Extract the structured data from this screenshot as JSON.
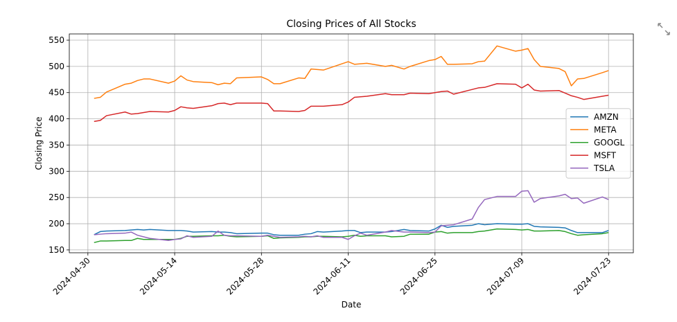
{
  "chart_data": {
    "type": "line",
    "title": "Closing Prices of All Stocks",
    "xlabel": "Date",
    "ylabel": "Closing Price",
    "grid": true,
    "legend": "center right",
    "x": [
      "2024-05-01",
      "2024-05-02",
      "2024-05-03",
      "2024-05-06",
      "2024-05-07",
      "2024-05-08",
      "2024-05-09",
      "2024-05-10",
      "2024-05-13",
      "2024-05-14",
      "2024-05-15",
      "2024-05-16",
      "2024-05-17",
      "2024-05-20",
      "2024-05-21",
      "2024-05-22",
      "2024-05-23",
      "2024-05-24",
      "2024-05-28",
      "2024-05-29",
      "2024-05-30",
      "2024-05-31",
      "2024-06-03",
      "2024-06-04",
      "2024-06-05",
      "2024-06-06",
      "2024-06-07",
      "2024-06-10",
      "2024-06-11",
      "2024-06-12",
      "2024-06-13",
      "2024-06-14",
      "2024-06-17",
      "2024-06-18",
      "2024-06-20",
      "2024-06-21",
      "2024-06-24",
      "2024-06-25",
      "2024-06-26",
      "2024-06-27",
      "2024-06-28",
      "2024-07-01",
      "2024-07-02",
      "2024-07-03",
      "2024-07-05",
      "2024-07-08",
      "2024-07-09",
      "2024-07-10",
      "2024-07-11",
      "2024-07-12",
      "2024-07-15",
      "2024-07-16",
      "2024-07-17",
      "2024-07-18",
      "2024-07-19",
      "2024-07-22",
      "2024-07-23"
    ],
    "xlim": [
      "2024-04-27",
      "2024-07-27"
    ],
    "xticks": [
      "2024-04-30",
      "2024-05-14",
      "2024-05-28",
      "2024-06-11",
      "2024-06-25",
      "2024-07-09",
      "2024-07-23"
    ],
    "ylim": [
      144.6,
      561.9
    ],
    "yticks": [
      150,
      200,
      250,
      300,
      350,
      400,
      450,
      500,
      550
    ],
    "series": [
      {
        "name": "AMZN",
        "color": "#1f77b4",
        "values": [
          179,
          185,
          186,
          187,
          188,
          189,
          188,
          189,
          187,
          187,
          187,
          186,
          184,
          185,
          184,
          184,
          183,
          181,
          182,
          182,
          179,
          178,
          178,
          180,
          181,
          185,
          184,
          186,
          187,
          187,
          183,
          184,
          184,
          185,
          189,
          187,
          186,
          190,
          197,
          193,
          195,
          197,
          200,
          198,
          200,
          199,
          199,
          200,
          195,
          194,
          193,
          192,
          187,
          183,
          183,
          183,
          187
        ]
      },
      {
        "name": "META",
        "color": "#ff7f0e",
        "values": [
          439,
          441,
          451,
          466,
          468,
          473,
          476,
          476,
          468,
          472,
          482,
          474,
          471,
          469,
          465,
          468,
          467,
          478,
          480,
          475,
          467,
          467,
          478,
          477,
          495,
          494,
          493,
          505,
          509,
          504,
          505,
          506,
          500,
          502,
          495,
          500,
          511,
          513,
          519,
          504,
          504,
          505,
          509,
          510,
          539,
          529,
          531,
          534,
          513,
          500,
          496,
          490,
          463,
          476,
          477,
          488,
          492
        ]
      },
      {
        "name": "GOOGL",
        "color": "#2ca02c",
        "values": [
          164,
          167,
          167,
          168,
          168,
          172,
          170,
          170,
          170,
          170,
          172,
          176,
          176,
          177,
          177,
          178,
          176,
          175,
          176,
          177,
          172,
          173,
          174,
          175,
          175,
          176,
          176,
          175,
          176,
          178,
          176,
          177,
          177,
          175,
          176,
          180,
          180,
          184,
          185,
          182,
          183,
          183,
          185,
          186,
          190,
          189,
          188,
          189,
          186,
          186,
          187,
          185,
          181,
          178,
          179,
          181,
          183
        ]
      },
      {
        "name": "MSFT",
        "color": "#d62728",
        "values": [
          395,
          397,
          406,
          413,
          409,
          410,
          412,
          414,
          413,
          416,
          423,
          421,
          420,
          425,
          429,
          430,
          427,
          430,
          430,
          429,
          415,
          415,
          414,
          416,
          424,
          424,
          424,
          427,
          432,
          441,
          442,
          443,
          448,
          446,
          446,
          449,
          448,
          450,
          452,
          453,
          447,
          456,
          459,
          460,
          467,
          466,
          459,
          466,
          455,
          453,
          454,
          449,
          444,
          441,
          437,
          443,
          445
        ]
      },
      {
        "name": "TSLA",
        "color": "#9467bd",
        "values": [
          179,
          180,
          181,
          182,
          184,
          178,
          175,
          172,
          168,
          170,
          171,
          177,
          174,
          176,
          186,
          178,
          177,
          177,
          176,
          178,
          176,
          174,
          175,
          176,
          175,
          177,
          174,
          174,
          170,
          177,
          182,
          178,
          184,
          187,
          184,
          184,
          183,
          184,
          196,
          197,
          198,
          209,
          231,
          246,
          252,
          252,
          262,
          263,
          241,
          248,
          253,
          256,
          248,
          249,
          239,
          251,
          246
        ]
      }
    ]
  }
}
